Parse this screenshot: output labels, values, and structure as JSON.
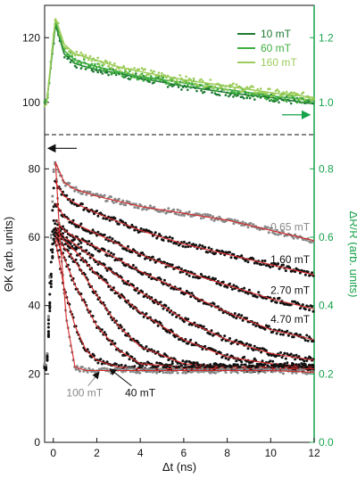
{
  "chart_data": [
    {
      "type": "scatter",
      "panel": "top",
      "xlim": [
        -0.4,
        12
      ],
      "ylim_left": [
        90,
        130
      ],
      "ylim_right": [
        0.9,
        1.3
      ],
      "yticks_left": [
        "100",
        "120"
      ],
      "yticks_right": [
        "1.0",
        "1.2"
      ],
      "ytick_values_left": [
        100,
        120
      ],
      "ytick_values_right": [
        1.0,
        1.2
      ],
      "legend": [
        "10 mT",
        "60 mT",
        "160 mT"
      ],
      "legend_colors": [
        "#1f7a32",
        "#3fae3f",
        "#9ccc5a"
      ],
      "legend_position": "top-right",
      "series": [
        {
          "name": "10 mT",
          "color": "#1f7a32",
          "x": [
            -0.3,
            0,
            0.1,
            0.5,
            1,
            2,
            3,
            4,
            6,
            8,
            10,
            12
          ],
          "y": [
            100,
            118,
            124,
            115,
            112,
            110,
            109,
            107.5,
            105,
            103,
            101.5,
            99.5
          ]
        },
        {
          "name": "60 mT",
          "color": "#3fae3f",
          "x": [
            -0.3,
            0,
            0.1,
            0.5,
            1,
            2,
            3,
            4,
            6,
            8,
            10,
            12
          ],
          "y": [
            100,
            119,
            125,
            116,
            113,
            111,
            109.5,
            108,
            106,
            104,
            102,
            100.5
          ]
        },
        {
          "name": "160 mT",
          "color": "#9ccc5a",
          "x": [
            -0.3,
            0,
            0.1,
            0.5,
            1,
            2,
            3,
            4,
            6,
            8,
            10,
            12
          ],
          "y": [
            100,
            120,
            126,
            118,
            115,
            113,
            111,
            109.5,
            107,
            105,
            103,
            101.5
          ]
        }
      ],
      "reference_lines": {
        "dashed_y_left": 90
      }
    },
    {
      "type": "scatter",
      "panel": "bottom",
      "xlabel": "Δt (ns)",
      "ylabel_left": "ΘK (arb. units)",
      "ylabel_right": "ΔR/R (arb. units)",
      "xlim": [
        -0.4,
        12
      ],
      "ylim_left": [
        0,
        90
      ],
      "ylim_right": [
        0.0,
        0.9
      ],
      "xticks": [
        "0",
        "2",
        "4",
        "6",
        "8",
        "10",
        "12"
      ],
      "xtick_values": [
        0,
        2,
        4,
        6,
        8,
        10,
        12
      ],
      "yticks_left": [
        "0",
        "20",
        "40",
        "60",
        "80"
      ],
      "ytick_values_left": [
        0,
        20,
        40,
        60,
        80
      ],
      "yticks_right": [
        "0.0",
        "0.2",
        "0.4",
        "0.6",
        "0.8"
      ],
      "ytick_values_right": [
        0.0,
        0.2,
        0.4,
        0.6,
        0.8
      ],
      "annotations": [
        {
          "text": "0.65 mT",
          "color": "#888888",
          "x": 11.8,
          "y": 62
        },
        {
          "text": "1.60 mT",
          "color": "#111111",
          "x": 11.8,
          "y": 52.5
        },
        {
          "text": "2.70 mT",
          "color": "#111111",
          "x": 11.8,
          "y": 43.5
        },
        {
          "text": "4.70 mT",
          "color": "#111111",
          "x": 11.8,
          "y": 35
        },
        {
          "text": "100 mT",
          "color": "#888888",
          "x": 0.6,
          "y": 13.5
        },
        {
          "text": "40 mT",
          "color": "#111111",
          "x": 3.3,
          "y": 13.5
        }
      ],
      "series": [
        {
          "name": "0.65 mT",
          "color": "#888888",
          "fit_color": "#d62728",
          "x": [
            -0.3,
            0,
            0.1,
            0.5,
            1,
            2,
            4,
            6,
            8,
            10,
            12
          ],
          "y": [
            22,
            80,
            82,
            76,
            74,
            72,
            69,
            67,
            65,
            62,
            59
          ]
        },
        {
          "name": "1.60 mT",
          "color": "#111111",
          "fit_color": "#d62728",
          "x": [
            -0.3,
            0,
            0.1,
            0.5,
            1,
            2,
            4,
            6,
            8,
            10,
            12
          ],
          "y": [
            22,
            74,
            76,
            72,
            70,
            67,
            62,
            58,
            55,
            52,
            49
          ]
        },
        {
          "name": "2.70 mT",
          "color": "#111111",
          "fit_color": "#d62728",
          "x": [
            -0.3,
            0,
            0.1,
            0.5,
            1,
            2,
            4,
            6,
            8,
            10,
            12
          ],
          "y": [
            22,
            68,
            70,
            66,
            64,
            61,
            55,
            50,
            46,
            42,
            39
          ]
        },
        {
          "name": "4.70 mT",
          "color": "#111111",
          "fit_color": "#d62728",
          "x": [
            -0.3,
            0,
            0.1,
            0.5,
            1,
            2,
            4,
            6,
            8,
            10,
            12
          ],
          "y": [
            22,
            64,
            65,
            62,
            60,
            57,
            50,
            44,
            38,
            33,
            30
          ]
        },
        {
          "name": "",
          "color": "#111111",
          "fit_color": "#d62728",
          "x": [
            -0.3,
            0,
            0.1,
            0.5,
            1,
            2,
            4,
            6,
            8,
            10,
            12
          ],
          "y": [
            22,
            62,
            63,
            60,
            58,
            53,
            44,
            36,
            30,
            26,
            24
          ]
        },
        {
          "name": "",
          "color": "#111111",
          "fit_color": "#d62728",
          "x": [
            -0.3,
            0,
            0.1,
            0.5,
            1,
            2,
            4,
            6,
            8,
            10,
            12
          ],
          "y": [
            22,
            61,
            62,
            59,
            56,
            49,
            38,
            30,
            25,
            23,
            22
          ]
        },
        {
          "name": "",
          "color": "#111111",
          "fit_color": "#d62728",
          "x": [
            -0.3,
            0,
            0.1,
            0.5,
            1,
            2,
            3,
            4,
            6,
            8,
            10,
            12
          ],
          "y": [
            22,
            60,
            61,
            57,
            53,
            43,
            34,
            28,
            23,
            22,
            22,
            22
          ]
        },
        {
          "name": "",
          "color": "#111111",
          "fit_color": "#d62728",
          "x": [
            -0.3,
            0,
            0.1,
            0.5,
            1,
            2,
            3,
            4,
            6,
            8,
            10,
            12
          ],
          "y": [
            22,
            59,
            60,
            54,
            46,
            34,
            27,
            23,
            22,
            22,
            22,
            22
          ]
        },
        {
          "name": "40 mT",
          "color": "#111111",
          "fit_color": "#d62728",
          "x": [
            -0.3,
            0,
            0.1,
            0.5,
            1,
            1.5,
            2,
            3,
            4,
            6,
            8,
            10,
            12
          ],
          "y": [
            22,
            58,
            59,
            45,
            34,
            27,
            24,
            22,
            21.5,
            21.5,
            21.5,
            21.5,
            21.5
          ]
        },
        {
          "name": "100 mT",
          "color": "#888888",
          "fit_color": "#d62728",
          "x": [
            -0.3,
            0,
            0.1,
            0.3,
            0.6,
            1,
            1.5,
            2,
            3,
            4,
            6,
            8,
            10,
            12
          ],
          "y": [
            22,
            78,
            82,
            60,
            36,
            22,
            21,
            21,
            21,
            21,
            21,
            21,
            21,
            20.5
          ]
        }
      ],
      "arrows": [
        {
          "direction": "left",
          "note": "points to left axis",
          "y": 86
        },
        {
          "direction": "right",
          "note": "points to right axis (top panel)",
          "y_right": 1.0
        }
      ]
    }
  ]
}
